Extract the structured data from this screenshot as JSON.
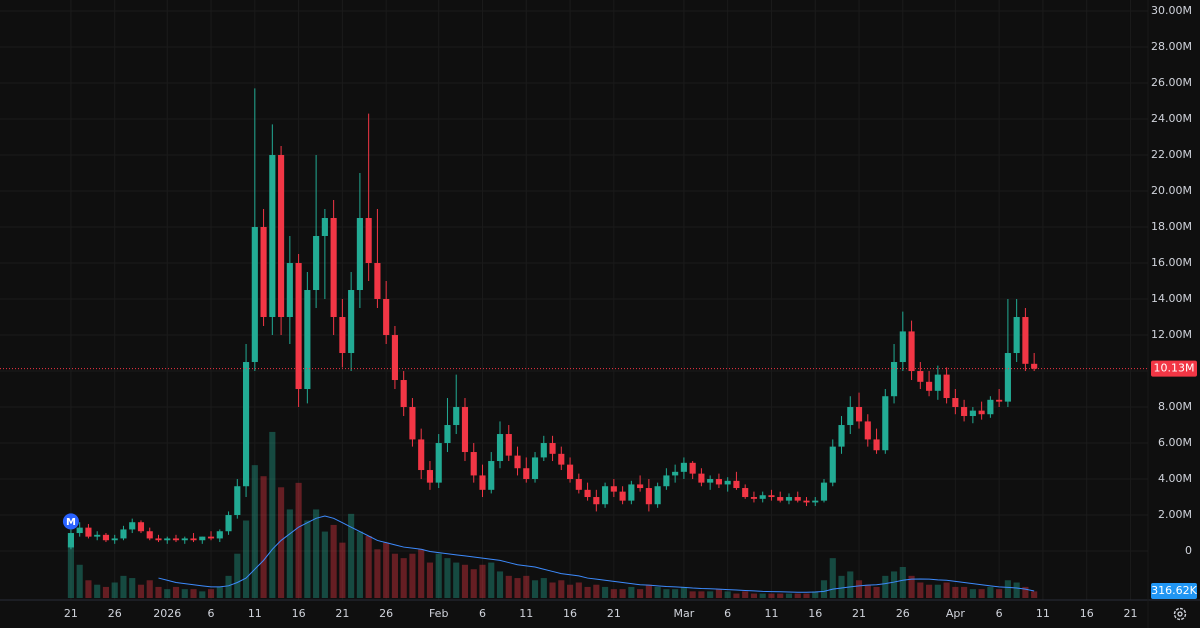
{
  "chart_data": {
    "type": "candlestick",
    "xlim": [
      -8.1,
      123
    ],
    "xticks": [
      {
        "value": 0,
        "label": "21"
      },
      {
        "value": 5,
        "label": "26"
      },
      {
        "value": 11,
        "label": "2026"
      },
      {
        "value": 16,
        "label": "6"
      },
      {
        "value": 21,
        "label": "11"
      },
      {
        "value": 26,
        "label": "16"
      },
      {
        "value": 31,
        "label": "21"
      },
      {
        "value": 36,
        "label": "26"
      },
      {
        "value": 42,
        "label": "Feb"
      },
      {
        "value": 47,
        "label": "6"
      },
      {
        "value": 52,
        "label": "11"
      },
      {
        "value": 57,
        "label": "16"
      },
      {
        "value": 62,
        "label": "21"
      },
      {
        "value": 70,
        "label": "Mar"
      },
      {
        "value": 75,
        "label": "6"
      },
      {
        "value": 80,
        "label": "11"
      },
      {
        "value": 85,
        "label": "16"
      },
      {
        "value": 90,
        "label": "21"
      },
      {
        "value": 95,
        "label": "26"
      },
      {
        "value": 101,
        "label": "Apr"
      },
      {
        "value": 106,
        "label": "6"
      },
      {
        "value": 111,
        "label": "11"
      },
      {
        "value": 116,
        "label": "16"
      },
      {
        "value": 121,
        "label": "21"
      }
    ],
    "ylim": [
      -2720000.0,
      30610000.0
    ],
    "yticks": [
      0,
      {
        "value": 2000000.0,
        "label": "2.00M"
      },
      {
        "value": 4000000.0,
        "label": "4.00M"
      },
      {
        "value": 6000000.0,
        "label": "6.00M"
      },
      {
        "value": 8000000.0,
        "label": "8.00M"
      },
      {
        "value": 10000000.0,
        "label": "10.00M"
      },
      {
        "value": 12000000.0,
        "label": "12.00M"
      },
      {
        "value": 14000000.0,
        "label": "14.00M"
      },
      {
        "value": 16000000.0,
        "label": "16.00M"
      },
      {
        "value": 18000000.0,
        "label": "18.00M"
      },
      {
        "value": 20000000.0,
        "label": "20.00M"
      },
      {
        "value": 22000000.0,
        "label": "22.00M"
      },
      {
        "value": 24000000.0,
        "label": "24.00M"
      },
      {
        "value": 26000000.0,
        "label": "26.00M"
      },
      {
        "value": 28000000.0,
        "label": "28.00M"
      },
      {
        "value": 30000000.0,
        "label": "30.00M"
      }
    ],
    "grid": true,
    "up_color": "#22ab94",
    "down_color": "#f23645",
    "open": [
      200000.0,
      1000000.0,
      1300000.0,
      800000.0,
      900000.0,
      600000.0,
      700000.0,
      1200000.0,
      1600000.0,
      1100000.0,
      700000.0,
      600000.0,
      700000.0,
      600000.0,
      700000.0,
      600000.0,
      800000.0,
      700000.0,
      1100000.0,
      2000000.0,
      3600000.0,
      10500000.0,
      18000000.0,
      13000000.0,
      22000000.0,
      13000000.0,
      16000000.0,
      9000000.0,
      14500000.0,
      17500000.0,
      18500000.0,
      13000000.0,
      11000000.0,
      14500000.0,
      18500000.0,
      16000000.0,
      14000000.0,
      12000000.0,
      9500000.0,
      8000000.0,
      6200000.0,
      4500000.0,
      3800000.0,
      6000000.0,
      7000000.0,
      8000000.0,
      5500000.0,
      4200000.0,
      3400000.0,
      5000000.0,
      6500000.0,
      5300000.0,
      4600000.0,
      4000000.0,
      5200000.0,
      6000000.0,
      5400000.0,
      4800000.0,
      4000000.0,
      3400000.0,
      3000000.0,
      2600000.0,
      3600000.0,
      3300000.0,
      2800000.0,
      3700000.0,
      3500000.0,
      2600000.0,
      3600000.0,
      4200000.0,
      4400000.0,
      4900000.0,
      4300000.0,
      3800000.0,
      4000000.0,
      3700000.0,
      3900000.0,
      3500000.0,
      3000000.0,
      2900000.0,
      3100000.0,
      3000000.0,
      2800000.0,
      3000000.0,
      2800000.0,
      2700000.0,
      2800000.0,
      3800000.0,
      5800000.0,
      7000000.0,
      8000000.0,
      7200000.0,
      6200000.0,
      5600000.0,
      8600000.0,
      10500000.0,
      12200000.0,
      10000000.0,
      9400000.0,
      8900000.0,
      9800000.0,
      8500000.0,
      8000000.0,
      7500000.0,
      7800000.0,
      7600000.0,
      8400000.0,
      8300000.0,
      11000000.0,
      13000000.0,
      10400000.0
    ],
    "high": [
      1200000.0,
      1600000.0,
      1500000.0,
      1100000.0,
      1000000.0,
      900000.0,
      1400000.0,
      1800000.0,
      1700000.0,
      1300000.0,
      900000.0,
      800000.0,
      900000.0,
      800000.0,
      1000000.0,
      800000.0,
      1100000.0,
      1200000.0,
      2200000.0,
      4000000.0,
      11500000.0,
      25700000.0,
      19000000.0,
      23700000.0,
      22500000.0,
      17500000.0,
      16500000.0,
      15500000.0,
      22000000.0,
      19000000.0,
      19500000.0,
      14000000.0,
      15500000.0,
      21000000.0,
      24300000.0,
      19000000.0,
      15000000.0,
      12500000.0,
      10000000.0,
      8500000.0,
      6800000.0,
      5000000.0,
      6500000.0,
      8500000.0,
      9800000.0,
      8500000.0,
      6000000.0,
      4800000.0,
      5500000.0,
      7200000.0,
      7000000.0,
      5800000.0,
      5200000.0,
      5500000.0,
      6400000.0,
      6400000.0,
      5800000.0,
      5200000.0,
      4300000.0,
      3800000.0,
      3400000.0,
      3800000.0,
      4000000.0,
      3600000.0,
      3900000.0,
      4200000.0,
      4000000.0,
      3800000.0,
      4600000.0,
      4800000.0,
      5200000.0,
      5000000.0,
      4600000.0,
      4200000.0,
      4300000.0,
      4100000.0,
      4400000.0,
      3700000.0,
      3300000.0,
      3300000.0,
      3400000.0,
      3300000.0,
      3200000.0,
      3300000.0,
      3000000.0,
      3000000.0,
      4000000.0,
      6200000.0,
      7500000.0,
      8600000.0,
      8800000.0,
      7600000.0,
      6800000.0,
      9000000.0,
      11500000.0,
      13300000.0,
      12800000.0,
      10500000.0,
      10000000.0,
      10300000.0,
      10200000.0,
      9000000.0,
      8400000.0,
      8000000.0,
      8300000.0,
      8600000.0,
      9000000.0,
      14000000.0,
      14000000.0,
      13500000.0,
      11000000.0
    ],
    "low": [
      100000.0,
      800000.0,
      700000.0,
      600000.0,
      500000.0,
      400000.0,
      600000.0,
      1000000.0,
      1000000.0,
      600000.0,
      500000.0,
      400000.0,
      500000.0,
      400000.0,
      500000.0,
      400000.0,
      600000.0,
      500000.0,
      900000.0,
      1800000.0,
      3000000.0,
      10000000.0,
      12500000.0,
      12000000.0,
      12000000.0,
      11500000.0,
      8000000.0,
      8200000.0,
      13500000.0,
      14000000.0,
      12000000.0,
      10200000.0,
      10000000.0,
      13500000.0,
      15000000.0,
      13500000.0,
      11500000.0,
      9000000.0,
      7500000.0,
      5800000.0,
      4000000.0,
      3400000.0,
      3500000.0,
      5500000.0,
      6500000.0,
      5000000.0,
      3800000.0,
      3000000.0,
      3200000.0,
      4600000.0,
      5000000.0,
      4200000.0,
      3800000.0,
      3800000.0,
      5000000.0,
      5000000.0,
      4500000.0,
      3800000.0,
      3200000.0,
      2800000.0,
      2200000.0,
      2400000.0,
      3000000.0,
      2600000.0,
      2600000.0,
      3300000.0,
      2200000.0,
      2400000.0,
      3400000.0,
      3800000.0,
      4000000.0,
      4000000.0,
      3600000.0,
      3400000.0,
      3500000.0,
      3300000.0,
      3400000.0,
      2900000.0,
      2700000.0,
      2700000.0,
      2800000.0,
      2700000.0,
      2600000.0,
      2700000.0,
      2500000.0,
      2500000.0,
      2700000.0,
      3600000.0,
      5400000.0,
      6500000.0,
      6800000.0,
      5800000.0,
      5400000.0,
      5400000.0,
      8200000.0,
      10000000.0,
      9500000.0,
      9000000.0,
      8600000.0,
      8400000.0,
      8200000.0,
      7600000.0,
      7200000.0,
      7100000.0,
      7300000.0,
      7400000.0,
      8000000.0,
      8000000.0,
      10500000.0,
      10000000.0,
      10000000.0
    ],
    "close": [
      1000000.0,
      1300000.0,
      800000.0,
      900000.0,
      600000.0,
      700000.0,
      1200000.0,
      1600000.0,
      1100000.0,
      700000.0,
      600000.0,
      700000.0,
      600000.0,
      700000.0,
      600000.0,
      800000.0,
      700000.0,
      1100000.0,
      2000000.0,
      3600000.0,
      10500000.0,
      18000000.0,
      13000000.0,
      22000000.0,
      13000000.0,
      16000000.0,
      9000000.0,
      14500000.0,
      17500000.0,
      18500000.0,
      13000000.0,
      11000000.0,
      14500000.0,
      18500000.0,
      16000000.0,
      14000000.0,
      12000000.0,
      9500000.0,
      8000000.0,
      6200000.0,
      4500000.0,
      3800000.0,
      6000000.0,
      7000000.0,
      8000000.0,
      5500000.0,
      4200000.0,
      3400000.0,
      5000000.0,
      6500000.0,
      5300000.0,
      4600000.0,
      4000000.0,
      5200000.0,
      6000000.0,
      5400000.0,
      4800000.0,
      4000000.0,
      3400000.0,
      3000000.0,
      2600000.0,
      3600000.0,
      3300000.0,
      2800000.0,
      3700000.0,
      3500000.0,
      2600000.0,
      3600000.0,
      4200000.0,
      4400000.0,
      4900000.0,
      4300000.0,
      3800000.0,
      4000000.0,
      3700000.0,
      3900000.0,
      3500000.0,
      3000000.0,
      2900000.0,
      3100000.0,
      3000000.0,
      2800000.0,
      3000000.0,
      2800000.0,
      2700000.0,
      2800000.0,
      3800000.0,
      5800000.0,
      7000000.0,
      8000000.0,
      7200000.0,
      6200000.0,
      5600000.0,
      8600000.0,
      10500000.0,
      12200000.0,
      10000000.0,
      9400000.0,
      8900000.0,
      9800000.0,
      8500000.0,
      8000000.0,
      7500000.0,
      7800000.0,
      7600000.0,
      8400000.0,
      8300000.0,
      11000000.0,
      13000000.0,
      10400000.0,
      10130000.0
    ],
    "last_label": "10.13M",
    "last_color": "#f23645",
    "marker_label": "M",
    "marker_color": "#2962ff",
    "volume": {
      "ylim": [
        0,
        14000000.0
      ],
      "values": [
        2400000.0,
        1500000.0,
        800000.0,
        600000.0,
        500000.0,
        700000.0,
        1000000.0,
        900000.0,
        600000.0,
        800000.0,
        500000.0,
        400000.0,
        500000.0,
        400000.0,
        400000.0,
        300000.0,
        400000.0,
        500000.0,
        1000000.0,
        2000000.0,
        3500000.0,
        6000000.0,
        5500000.0,
        7500000.0,
        5000000.0,
        4000000.0,
        5200000.0,
        3500000.0,
        4000000.0,
        3000000.0,
        3300000.0,
        2500000.0,
        3800000.0,
        3000000.0,
        2800000.0,
        2200000.0,
        2500000.0,
        2000000.0,
        1800000.0,
        2000000.0,
        2200000.0,
        1600000.0,
        2000000.0,
        1800000.0,
        1600000.0,
        1500000.0,
        1300000.0,
        1500000.0,
        1600000.0,
        1200000.0,
        1000000.0,
        900000.0,
        1000000.0,
        800000.0,
        900000.0,
        700000.0,
        800000.0,
        600000.0,
        700000.0,
        500000.0,
        600000.0,
        500000.0,
        400000.0,
        400000.0,
        500000.0,
        400000.0,
        600000.0,
        500000.0,
        400000.0,
        400000.0,
        500000.0,
        300000.0,
        300000.0,
        300000.0,
        400000.0,
        300000.0,
        200000.0,
        300000.0,
        200000.0,
        200000.0,
        200000.0,
        200000.0,
        200000.0,
        200000.0,
        200000.0,
        300000.0,
        800000.0,
        1800000.0,
        1000000.0,
        1200000.0,
        800000.0,
        600000.0,
        500000.0,
        1000000.0,
        1200000.0,
        1400000.0,
        1000000.0,
        700000.0,
        600000.0,
        600000.0,
        700000.0,
        500000.0,
        500000.0,
        400000.0,
        400000.0,
        500000.0,
        400000.0,
        800000.0,
        700000.0,
        500000.0,
        300000.0
      ],
      "ma": {
        "color": "#3d8bfd",
        "last_label": "316.62K",
        "values": [
          null,
          null,
          null,
          null,
          null,
          null,
          null,
          null,
          null,
          null,
          900000.0,
          800000.0,
          700000.0,
          650000.0,
          600000.0,
          550000.0,
          500000.0,
          500000.0,
          550000.0,
          700000.0,
          900000.0,
          1300000.0,
          1700000.0,
          2200000.0,
          2600000.0,
          2900000.0,
          3200000.0,
          3400000.0,
          3600000.0,
          3700000.0,
          3600000.0,
          3400000.0,
          3200000.0,
          3000000.0,
          2800000.0,
          2600000.0,
          2500000.0,
          2400000.0,
          2300000.0,
          2250000.0,
          2200000.0,
          2100000.0,
          2050000.0,
          2000000.0,
          1950000.0,
          1900000.0,
          1850000.0,
          1800000.0,
          1750000.0,
          1700000.0,
          1600000.0,
          1500000.0,
          1450000.0,
          1400000.0,
          1300000.0,
          1200000.0,
          1100000.0,
          1050000.0,
          1000000.0,
          900000.0,
          850000.0,
          800000.0,
          750000.0,
          700000.0,
          650000.0,
          600000.0,
          580000.0,
          550000.0,
          520000.0,
          500000.0,
          480000.0,
          450000.0,
          430000.0,
          420000.0,
          400000.0,
          380000.0,
          360000.0,
          340000.0,
          320000.0,
          300000.0,
          290000.0,
          280000.0,
          270000.0,
          260000.0,
          260000.0,
          270000.0,
          300000.0,
          400000.0,
          450000.0,
          500000.0,
          550000.0,
          580000.0,
          600000.0,
          650000.0,
          720000.0,
          800000.0,
          850000.0,
          860000.0,
          850000.0,
          820000.0,
          800000.0,
          750000.0,
          700000.0,
          650000.0,
          600000.0,
          550000.0,
          500000.0,
          480000.0,
          450000.0,
          400000.0,
          316620
        ]
      }
    }
  }
}
